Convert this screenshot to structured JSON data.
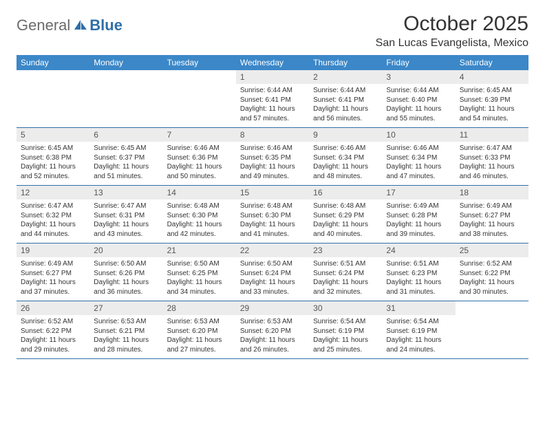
{
  "brand": {
    "part1": "General",
    "part2": "Blue"
  },
  "title": "October 2025",
  "location": "San Lucas Evangelista, Mexico",
  "colors": {
    "header_bg": "#3b87c8",
    "header_text": "#ffffff",
    "daynum_bg": "#ececec",
    "rule": "#2f6fa8",
    "body_text": "#333333",
    "logo_gray": "#6b6b6b",
    "logo_blue": "#2f6fa8"
  },
  "dow": [
    "Sunday",
    "Monday",
    "Tuesday",
    "Wednesday",
    "Thursday",
    "Friday",
    "Saturday"
  ],
  "weeks": [
    [
      {
        "n": "",
        "sr": "",
        "ss": "",
        "dl": ""
      },
      {
        "n": "",
        "sr": "",
        "ss": "",
        "dl": ""
      },
      {
        "n": "",
        "sr": "",
        "ss": "",
        "dl": ""
      },
      {
        "n": "1",
        "sr": "Sunrise: 6:44 AM",
        "ss": "Sunset: 6:41 PM",
        "dl": "Daylight: 11 hours and 57 minutes."
      },
      {
        "n": "2",
        "sr": "Sunrise: 6:44 AM",
        "ss": "Sunset: 6:41 PM",
        "dl": "Daylight: 11 hours and 56 minutes."
      },
      {
        "n": "3",
        "sr": "Sunrise: 6:44 AM",
        "ss": "Sunset: 6:40 PM",
        "dl": "Daylight: 11 hours and 55 minutes."
      },
      {
        "n": "4",
        "sr": "Sunrise: 6:45 AM",
        "ss": "Sunset: 6:39 PM",
        "dl": "Daylight: 11 hours and 54 minutes."
      }
    ],
    [
      {
        "n": "5",
        "sr": "Sunrise: 6:45 AM",
        "ss": "Sunset: 6:38 PM",
        "dl": "Daylight: 11 hours and 52 minutes."
      },
      {
        "n": "6",
        "sr": "Sunrise: 6:45 AM",
        "ss": "Sunset: 6:37 PM",
        "dl": "Daylight: 11 hours and 51 minutes."
      },
      {
        "n": "7",
        "sr": "Sunrise: 6:46 AM",
        "ss": "Sunset: 6:36 PM",
        "dl": "Daylight: 11 hours and 50 minutes."
      },
      {
        "n": "8",
        "sr": "Sunrise: 6:46 AM",
        "ss": "Sunset: 6:35 PM",
        "dl": "Daylight: 11 hours and 49 minutes."
      },
      {
        "n": "9",
        "sr": "Sunrise: 6:46 AM",
        "ss": "Sunset: 6:34 PM",
        "dl": "Daylight: 11 hours and 48 minutes."
      },
      {
        "n": "10",
        "sr": "Sunrise: 6:46 AM",
        "ss": "Sunset: 6:34 PM",
        "dl": "Daylight: 11 hours and 47 minutes."
      },
      {
        "n": "11",
        "sr": "Sunrise: 6:47 AM",
        "ss": "Sunset: 6:33 PM",
        "dl": "Daylight: 11 hours and 46 minutes."
      }
    ],
    [
      {
        "n": "12",
        "sr": "Sunrise: 6:47 AM",
        "ss": "Sunset: 6:32 PM",
        "dl": "Daylight: 11 hours and 44 minutes."
      },
      {
        "n": "13",
        "sr": "Sunrise: 6:47 AM",
        "ss": "Sunset: 6:31 PM",
        "dl": "Daylight: 11 hours and 43 minutes."
      },
      {
        "n": "14",
        "sr": "Sunrise: 6:48 AM",
        "ss": "Sunset: 6:30 PM",
        "dl": "Daylight: 11 hours and 42 minutes."
      },
      {
        "n": "15",
        "sr": "Sunrise: 6:48 AM",
        "ss": "Sunset: 6:30 PM",
        "dl": "Daylight: 11 hours and 41 minutes."
      },
      {
        "n": "16",
        "sr": "Sunrise: 6:48 AM",
        "ss": "Sunset: 6:29 PM",
        "dl": "Daylight: 11 hours and 40 minutes."
      },
      {
        "n": "17",
        "sr": "Sunrise: 6:49 AM",
        "ss": "Sunset: 6:28 PM",
        "dl": "Daylight: 11 hours and 39 minutes."
      },
      {
        "n": "18",
        "sr": "Sunrise: 6:49 AM",
        "ss": "Sunset: 6:27 PM",
        "dl": "Daylight: 11 hours and 38 minutes."
      }
    ],
    [
      {
        "n": "19",
        "sr": "Sunrise: 6:49 AM",
        "ss": "Sunset: 6:27 PM",
        "dl": "Daylight: 11 hours and 37 minutes."
      },
      {
        "n": "20",
        "sr": "Sunrise: 6:50 AM",
        "ss": "Sunset: 6:26 PM",
        "dl": "Daylight: 11 hours and 36 minutes."
      },
      {
        "n": "21",
        "sr": "Sunrise: 6:50 AM",
        "ss": "Sunset: 6:25 PM",
        "dl": "Daylight: 11 hours and 34 minutes."
      },
      {
        "n": "22",
        "sr": "Sunrise: 6:50 AM",
        "ss": "Sunset: 6:24 PM",
        "dl": "Daylight: 11 hours and 33 minutes."
      },
      {
        "n": "23",
        "sr": "Sunrise: 6:51 AM",
        "ss": "Sunset: 6:24 PM",
        "dl": "Daylight: 11 hours and 32 minutes."
      },
      {
        "n": "24",
        "sr": "Sunrise: 6:51 AM",
        "ss": "Sunset: 6:23 PM",
        "dl": "Daylight: 11 hours and 31 minutes."
      },
      {
        "n": "25",
        "sr": "Sunrise: 6:52 AM",
        "ss": "Sunset: 6:22 PM",
        "dl": "Daylight: 11 hours and 30 minutes."
      }
    ],
    [
      {
        "n": "26",
        "sr": "Sunrise: 6:52 AM",
        "ss": "Sunset: 6:22 PM",
        "dl": "Daylight: 11 hours and 29 minutes."
      },
      {
        "n": "27",
        "sr": "Sunrise: 6:53 AM",
        "ss": "Sunset: 6:21 PM",
        "dl": "Daylight: 11 hours and 28 minutes."
      },
      {
        "n": "28",
        "sr": "Sunrise: 6:53 AM",
        "ss": "Sunset: 6:20 PM",
        "dl": "Daylight: 11 hours and 27 minutes."
      },
      {
        "n": "29",
        "sr": "Sunrise: 6:53 AM",
        "ss": "Sunset: 6:20 PM",
        "dl": "Daylight: 11 hours and 26 minutes."
      },
      {
        "n": "30",
        "sr": "Sunrise: 6:54 AM",
        "ss": "Sunset: 6:19 PM",
        "dl": "Daylight: 11 hours and 25 minutes."
      },
      {
        "n": "31",
        "sr": "Sunrise: 6:54 AM",
        "ss": "Sunset: 6:19 PM",
        "dl": "Daylight: 11 hours and 24 minutes."
      },
      {
        "n": "",
        "sr": "",
        "ss": "",
        "dl": ""
      }
    ]
  ]
}
